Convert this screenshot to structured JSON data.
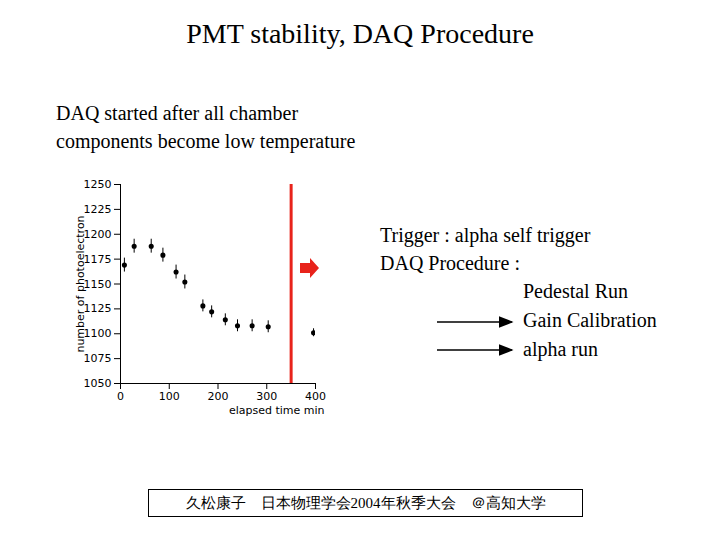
{
  "slide": {
    "title": "PMT stability, DAQ Procedure",
    "subtitle_lines": [
      "DAQ started after all chamber",
      "components become low temperature"
    ],
    "trigger": "Trigger : alpha self trigger",
    "procedure_title": "DAQ Procedure :",
    "procedure": [
      "Pedestal Run",
      "Gain Calibration",
      "alpha run"
    ],
    "footer": "久松康子　日本物理学会2004年秋季大会　＠高知大学"
  },
  "chart_data": {
    "type": "scatter",
    "xlabel": "elapsed time min",
    "ylabel": "number of photoelectron",
    "x": [
      8,
      28,
      63,
      87,
      114,
      132,
      169,
      187,
      215,
      240,
      270,
      303,
      396
    ],
    "values": [
      1169,
      1188,
      1188,
      1179,
      1162,
      1152,
      1128,
      1122,
      1114,
      1108,
      1108,
      1107,
      1101
    ],
    "errors": [
      7,
      7,
      7,
      7,
      7,
      7,
      6,
      6,
      6,
      6,
      6,
      6,
      4
    ],
    "vline": 350,
    "xlim": [
      0,
      400
    ],
    "xticks": [
      0,
      100,
      200,
      300,
      400
    ],
    "ylim": [
      1050,
      1250
    ],
    "yticks": [
      1050,
      1075,
      1100,
      1125,
      1150,
      1175,
      1200,
      1225,
      1250
    ],
    "color": "#000000",
    "marker": "dot"
  }
}
